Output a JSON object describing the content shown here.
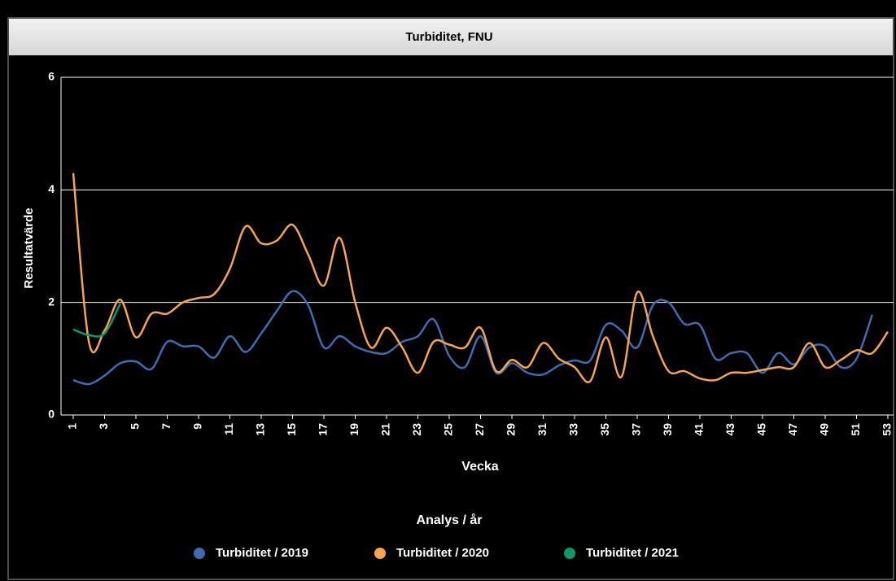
{
  "chart_data": {
    "type": "line",
    "title": "Turbiditet, FNU",
    "xlabel": "Vecka",
    "ylabel": "Resultatvärde",
    "legend_title": "Analys / år",
    "x": [
      1,
      2,
      3,
      4,
      5,
      6,
      7,
      8,
      9,
      10,
      11,
      12,
      13,
      14,
      15,
      16,
      17,
      18,
      19,
      20,
      21,
      22,
      23,
      24,
      25,
      26,
      27,
      28,
      29,
      30,
      31,
      32,
      33,
      34,
      35,
      36,
      37,
      38,
      39,
      40,
      41,
      42,
      43,
      44,
      45,
      46,
      47,
      48,
      49,
      50,
      51,
      52,
      53
    ],
    "xlim": [
      1,
      53
    ],
    "xticks": [
      1,
      3,
      5,
      7,
      9,
      11,
      13,
      15,
      17,
      19,
      21,
      23,
      25,
      27,
      29,
      31,
      33,
      35,
      37,
      39,
      41,
      43,
      45,
      47,
      49,
      51,
      53
    ],
    "ylim": [
      0,
      6
    ],
    "yticks": [
      0,
      2,
      4,
      6
    ],
    "grid": true,
    "legend": "bottom",
    "series": [
      {
        "name": "Turbiditet / 2019",
        "color": "#3d6db0",
        "values": [
          0.62,
          0.55,
          0.7,
          0.92,
          0.95,
          0.82,
          1.3,
          1.22,
          1.22,
          1.02,
          1.4,
          1.12,
          1.45,
          1.85,
          2.2,
          1.95,
          1.2,
          1.4,
          1.22,
          1.12,
          1.1,
          1.3,
          1.4,
          1.7,
          1.05,
          0.85,
          1.4,
          0.75,
          0.92,
          0.75,
          0.72,
          0.88,
          0.97,
          0.97,
          1.6,
          1.5,
          1.2,
          1.95,
          2.0,
          1.62,
          1.6,
          1.0,
          1.1,
          1.1,
          0.75,
          1.1,
          0.9,
          1.2,
          1.22,
          0.85,
          1.0,
          1.78,
          null
        ]
      },
      {
        "name": "Turbiditet / 2020",
        "color": "#f5a54a",
        "values": [
          4.3,
          1.3,
          1.5,
          2.05,
          1.38,
          1.8,
          1.8,
          2.0,
          2.08,
          2.15,
          2.6,
          3.35,
          3.05,
          3.1,
          3.38,
          2.85,
          2.3,
          3.15,
          2.0,
          1.2,
          1.55,
          1.2,
          0.75,
          1.3,
          1.25,
          1.2,
          1.55,
          0.78,
          0.98,
          0.85,
          1.28,
          1.0,
          0.85,
          0.6,
          1.38,
          0.68,
          2.18,
          1.4,
          0.78,
          0.78,
          0.65,
          0.62,
          0.75,
          0.75,
          0.8,
          0.85,
          0.85,
          1.28,
          0.85,
          0.98,
          1.15,
          1.1,
          1.48
        ]
      },
      {
        "name": "Turbiditet / 2021",
        "color": "#0d9a6a",
        "values": [
          1.52,
          1.42,
          1.45,
          1.98,
          null,
          null,
          null,
          null,
          null,
          null,
          null,
          null,
          null,
          null,
          null,
          null,
          null,
          null,
          null,
          null,
          null,
          null,
          null,
          null,
          null,
          null,
          null,
          null,
          null,
          null,
          null,
          null,
          null,
          null,
          null,
          null,
          null,
          null,
          null,
          null,
          null,
          null,
          null,
          null,
          null,
          null,
          null,
          null,
          null,
          null,
          null,
          null,
          null
        ]
      }
    ]
  }
}
